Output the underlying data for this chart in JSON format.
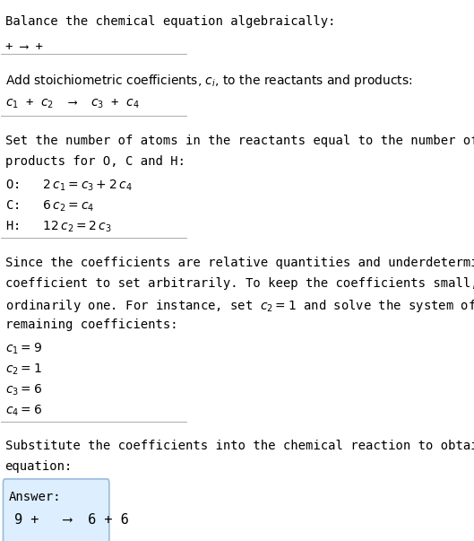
{
  "title": "Balance the chemical equation algebraically:",
  "line1": "+ ⟶ +",
  "section2_intro": "Add stoichiometric coefficients, $c_i$, to the reactants and products:",
  "section2_eq": "$c_1$ + $c_2$  ⟶  $c_3$ + $c_4$",
  "section3_intro": "Set the number of atoms in the reactants equal to the number of atoms in the\nproducts for O, C and H:",
  "section3_O": "O:   $2\\,c_1 = c_3 + 2\\,c_4$",
  "section3_C": "C:   $6\\,c_2 = c_4$",
  "section3_H": "H:   $12\\,c_2 = 2\\,c_3$",
  "section4_intro": "Since the coefficients are relative quantities and underdetermined, choose a\ncoefficient to set arbitrarily. To keep the coefficients small, the arbitrary value is\nordinarily one. For instance, set $c_2 = 1$ and solve the system of equations for the\nremaining coefficients:",
  "section4_c1": "$c_1 = 9$",
  "section4_c2": "$c_2 = 1$",
  "section4_c3": "$c_3 = 6$",
  "section4_c4": "$c_4 = 6$",
  "section5_intro": "Substitute the coefficients into the chemical reaction to obtain the balanced\nequation:",
  "answer_label": "Answer:",
  "answer_eq": "9 +   ⟶  6 + 6",
  "bg_color": "#ffffff",
  "answer_box_color": "#ddeeff",
  "answer_box_border": "#99bbdd",
  "text_color": "#000000",
  "font_size": 10,
  "mono_font_size": 10
}
